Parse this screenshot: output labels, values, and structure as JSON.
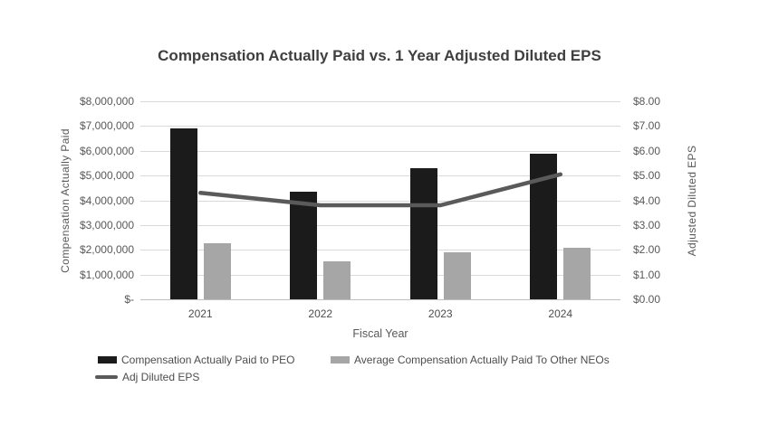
{
  "chart_data": {
    "type": "bar",
    "subtype": "combo-bar-line-dual-axis",
    "title": "Compensation Actually Paid vs. 1 Year Adjusted Diluted EPS",
    "categories": [
      "2021",
      "2022",
      "2023",
      "2024"
    ],
    "series": [
      {
        "id": "peo-bar",
        "kind": "bar",
        "name": "Compensation Actually Paid to PEO",
        "axis": "left",
        "color": "#1b1b1b",
        "values": [
          6900000,
          4350000,
          5300000,
          5900000
        ]
      },
      {
        "id": "neo-bar",
        "kind": "bar",
        "name": "Average Compensation Actually Paid To Other NEOs",
        "axis": "left",
        "color": "#a6a6a6",
        "values": [
          2250000,
          1550000,
          1900000,
          2100000
        ]
      },
      {
        "id": "eps-line",
        "kind": "line",
        "name": "Adj Diluted EPS",
        "axis": "right",
        "color": "#5a5a5a",
        "values": [
          4.3,
          3.8,
          3.8,
          5.05
        ]
      }
    ],
    "xlabel": "Fiscal Year",
    "left_axis": {
      "label": "Compensation Actually Paid",
      "min": 0,
      "max": 8000000,
      "ticks": [
        "$8,000,000",
        "$7,000,000",
        "$6,000,000",
        "$5,000,000",
        "$4,000,000",
        "$3,000,000",
        "$2,000,000",
        "$1,000,000",
        "$-"
      ]
    },
    "right_axis": {
      "label": "Adjusted Diluted EPS",
      "min": 0,
      "max": 8,
      "ticks": [
        "$8.00",
        "$7.00",
        "$6.00",
        "$5.00",
        "$4.00",
        "$3.00",
        "$2.00",
        "$1.00",
        "$0.00"
      ]
    },
    "grid": true,
    "legend_position": "bottom-left",
    "colors": {
      "background": "#ffffff",
      "gridline": "#d9d9d9",
      "axis_line": "#bfbfbf",
      "title_text": "#3f3f3f",
      "tick_text": "#595959",
      "label_text": "#4d4d4d"
    }
  }
}
